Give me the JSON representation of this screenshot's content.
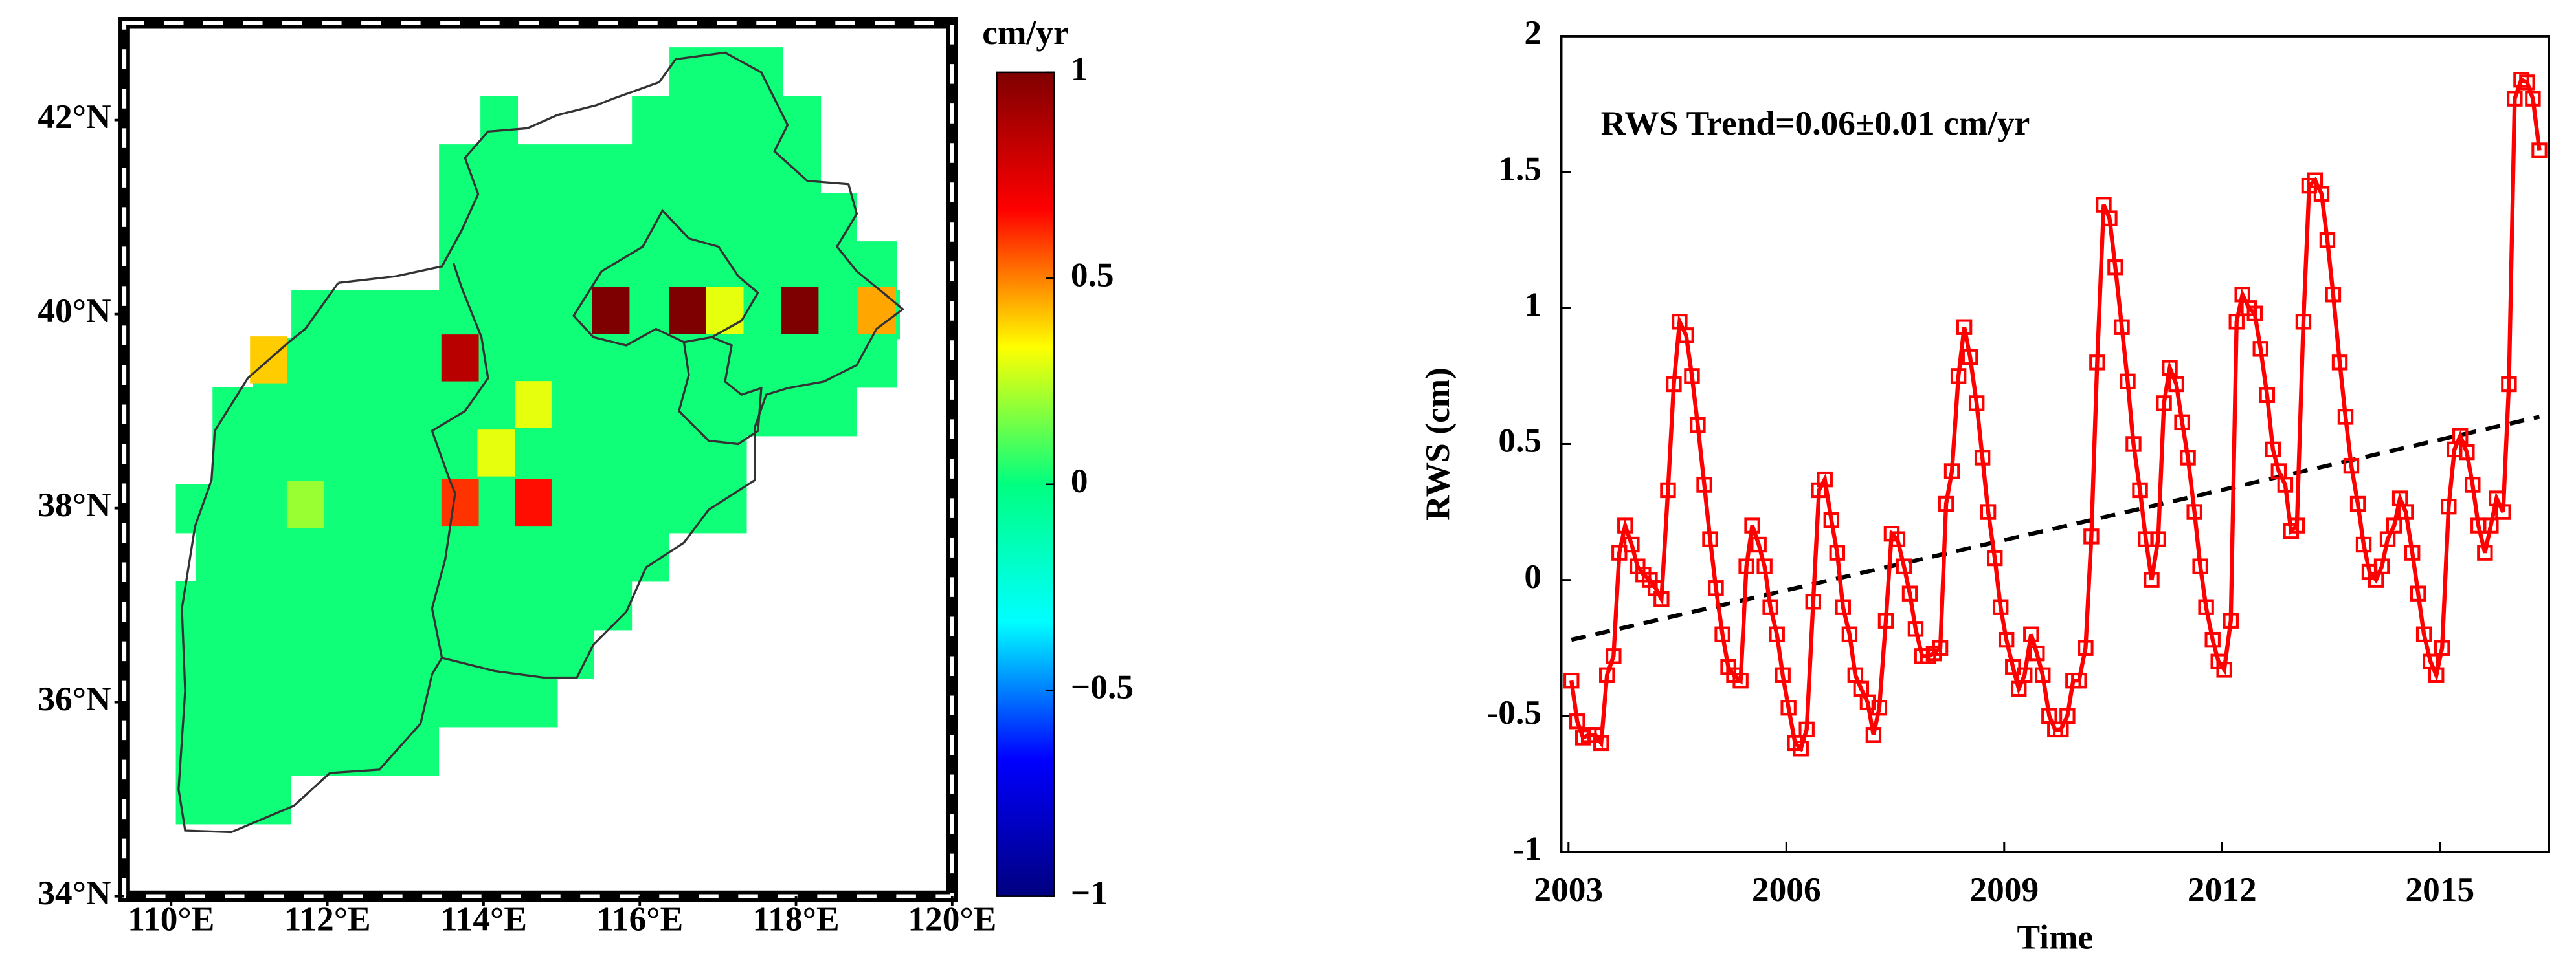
{
  "chart_data": [
    {
      "type": "heatmap",
      "colorbar_label": "cm/yr",
      "xlim": [
        109.4,
        120
      ],
      "ylim": [
        34,
        43
      ],
      "xticks": [
        {
          "value": 110,
          "label": "110°E"
        },
        {
          "value": 112,
          "label": "112°E"
        },
        {
          "value": 114,
          "label": "114°E"
        },
        {
          "value": 116,
          "label": "116°E"
        },
        {
          "value": 118,
          "label": "118°E"
        },
        {
          "value": 120,
          "label": "120°E"
        }
      ],
      "yticks": [
        {
          "value": 34,
          "label": "34°N"
        },
        {
          "value": 36,
          "label": "36°N"
        },
        {
          "value": 38,
          "label": "38°N"
        },
        {
          "value": 40,
          "label": "40°N"
        },
        {
          "value": 42,
          "label": "42°N"
        }
      ],
      "clim": [
        -1,
        1
      ],
      "cticks": [
        {
          "value": -1,
          "label": "−1"
        },
        {
          "value": -0.5,
          "label": "−0.5"
        },
        0,
        0.5,
        1
      ],
      "colormap": [
        "#00007f",
        "#0000ff",
        "#00ffff",
        "#00ff80",
        "#ffff00",
        "#ff0000",
        "#7f0000"
      ],
      "region_value": 0.02,
      "region_rows": [
        {
          "lat": 42.5,
          "lon": [
            116.38,
            117.83
          ]
        },
        {
          "lat": 42.0,
          "lon": [
            113.96,
            114.44
          ]
        },
        {
          "lat": 42.0,
          "lon": [
            115.9,
            118.32
          ]
        },
        {
          "lat": 41.5,
          "lon": [
            113.43,
            118.32
          ]
        },
        {
          "lat": 41.0,
          "lon": [
            113.43,
            118.78
          ]
        },
        {
          "lat": 40.5,
          "lon": [
            113.43,
            119.29
          ]
        },
        {
          "lat": 40.0,
          "lon": [
            111.54,
            119.33
          ]
        },
        {
          "lat": 39.5,
          "lon": [
            111.05,
            119.29
          ]
        },
        {
          "lat": 39.0,
          "lon": [
            110.53,
            118.78
          ]
        },
        {
          "lat": 38.5,
          "lon": [
            110.53,
            117.37
          ]
        },
        {
          "lat": 38.0,
          "lon": [
            110.06,
            117.37
          ]
        },
        {
          "lat": 37.5,
          "lon": [
            110.32,
            116.38
          ]
        },
        {
          "lat": 37.0,
          "lon": [
            110.06,
            115.9
          ]
        },
        {
          "lat": 36.5,
          "lon": [
            110.06,
            115.41
          ]
        },
        {
          "lat": 36.0,
          "lon": [
            110.06,
            114.95
          ]
        },
        {
          "lat": 35.5,
          "lon": [
            110.06,
            113.43
          ]
        },
        {
          "lat": 35.0,
          "lon": [
            110.06,
            111.54
          ]
        }
      ],
      "cells": [
        {
          "lon": 111.26,
          "lat": 39.52,
          "value": 0.4
        },
        {
          "lon": 113.71,
          "lat": 39.54,
          "value": 0.85
        },
        {
          "lon": 111.73,
          "lat": 38.03,
          "value": 0.2
        },
        {
          "lon": 114.65,
          "lat": 39.06,
          "value": 0.3
        },
        {
          "lon": 114.17,
          "lat": 38.56,
          "value": 0.3
        },
        {
          "lon": 113.71,
          "lat": 38.05,
          "value": 0.6
        },
        {
          "lon": 114.65,
          "lat": 38.05,
          "value": 0.65
        },
        {
          "lon": 115.64,
          "lat": 40.03,
          "value": 1.0
        },
        {
          "lon": 116.63,
          "lat": 40.03,
          "value": 1.0
        },
        {
          "lon": 117.1,
          "lat": 40.03,
          "value": 0.3
        },
        {
          "lon": 118.06,
          "lat": 40.03,
          "value": 1.0
        },
        {
          "lon": 119.05,
          "lat": 40.03,
          "value": 0.45
        }
      ]
    },
    {
      "type": "line",
      "xlabel": "Time",
      "ylabel": "RWS (cm)",
      "annotation": "RWS Trend=0.06±0.01 cm/yr",
      "xlim": [
        2002.9,
        2016.5
      ],
      "ylim": [
        -1,
        2
      ],
      "xticks": [
        2003,
        2006,
        2009,
        2012,
        2015
      ],
      "yticks": [
        -1,
        -0.5,
        0,
        0.5,
        1,
        1.5,
        2
      ],
      "x": [
        2003.04,
        2003.12,
        2003.2,
        2003.28,
        2003.37,
        2003.45,
        2003.53,
        2003.62,
        2003.7,
        2003.78,
        2003.87,
        2003.95,
        2004.03,
        2004.12,
        2004.2,
        2004.28,
        2004.37,
        2004.45,
        2004.53,
        2004.62,
        2004.7,
        2004.78,
        2004.87,
        2004.95,
        2005.03,
        2005.12,
        2005.2,
        2005.28,
        2005.37,
        2005.45,
        2005.53,
        2005.62,
        2005.7,
        2005.78,
        2005.87,
        2005.95,
        2006.03,
        2006.12,
        2006.2,
        2006.28,
        2006.37,
        2006.45,
        2006.53,
        2006.62,
        2006.7,
        2006.78,
        2006.87,
        2006.95,
        2007.03,
        2007.12,
        2007.2,
        2007.28,
        2007.37,
        2007.45,
        2007.53,
        2007.62,
        2007.7,
        2007.78,
        2007.87,
        2007.95,
        2008.03,
        2008.12,
        2008.2,
        2008.28,
        2008.37,
        2008.45,
        2008.53,
        2008.62,
        2008.7,
        2008.78,
        2008.87,
        2008.95,
        2009.03,
        2009.12,
        2009.2,
        2009.28,
        2009.37,
        2009.45,
        2009.53,
        2009.62,
        2009.7,
        2009.78,
        2009.87,
        2009.95,
        2010.03,
        2010.12,
        2010.2,
        2010.28,
        2010.37,
        2010.45,
        2010.53,
        2010.62,
        2010.7,
        2010.78,
        2010.87,
        2010.95,
        2011.03,
        2011.12,
        2011.2,
        2011.28,
        2011.37,
        2011.45,
        2011.53,
        2011.62,
        2011.7,
        2011.78,
        2011.87,
        2011.95,
        2012.03,
        2012.12,
        2012.2,
        2012.28,
        2012.37,
        2012.45,
        2012.53,
        2012.62,
        2012.7,
        2012.78,
        2012.87,
        2012.95,
        2013.03,
        2013.12,
        2013.2,
        2013.28,
        2013.37,
        2013.45,
        2013.53,
        2013.62,
        2013.7,
        2013.78,
        2013.87,
        2013.95,
        2014.03,
        2014.12,
        2014.2,
        2014.28,
        2014.37,
        2014.45,
        2014.53,
        2014.62,
        2014.7,
        2014.78,
        2014.87,
        2014.95,
        2015.03,
        2015.12,
        2015.2,
        2015.28,
        2015.37,
        2015.45,
        2015.53,
        2015.62,
        2015.7,
        2015.78,
        2015.87,
        2015.95,
        2016.03,
        2016.12,
        2016.2,
        2016.28,
        2016.37
      ],
      "series": [
        {
          "color": "#ff0000",
          "values": [
            -0.37,
            -0.52,
            -0.58,
            -0.57,
            -0.57,
            -0.6,
            -0.35,
            -0.28,
            0.1,
            0.2,
            0.13,
            0.05,
            0.02,
            0.0,
            -0.03,
            -0.07,
            0.33,
            0.72,
            0.95,
            0.9,
            0.75,
            0.57,
            0.35,
            0.15,
            -0.03,
            -0.2,
            -0.32,
            -0.35,
            -0.37,
            0.05,
            0.2,
            0.13,
            0.05,
            -0.1,
            -0.2,
            -0.35,
            -0.47,
            -0.6,
            -0.62,
            -0.55,
            -0.08,
            0.33,
            0.37,
            0.22,
            0.1,
            -0.1,
            -0.2,
            -0.35,
            -0.4,
            -0.45,
            -0.57,
            -0.47,
            -0.15,
            0.17,
            0.15,
            0.05,
            -0.05,
            -0.18,
            -0.28,
            -0.28,
            -0.27,
            -0.25,
            0.28,
            0.4,
            0.75,
            0.93,
            0.82,
            0.65,
            0.45,
            0.25,
            0.08,
            -0.1,
            -0.22,
            -0.32,
            -0.4,
            -0.35,
            -0.2,
            -0.27,
            -0.35,
            -0.5,
            -0.55,
            -0.55,
            -0.5,
            -0.37,
            -0.37,
            -0.25,
            0.16,
            0.8,
            1.38,
            1.33,
            1.15,
            0.93,
            0.73,
            0.5,
            0.33,
            0.15,
            0.0,
            0.15,
            0.65,
            0.78,
            0.72,
            0.58,
            0.45,
            0.25,
            0.05,
            -0.1,
            -0.22,
            -0.3,
            -0.33,
            -0.15,
            0.95,
            1.05,
            1.0,
            0.98,
            0.85,
            0.68,
            0.48,
            0.4,
            0.35,
            0.18,
            0.2,
            0.95,
            1.45,
            1.47,
            1.42,
            1.25,
            1.05,
            0.8,
            0.6,
            0.42,
            0.28,
            0.13,
            0.03,
            0.0,
            0.05,
            0.15,
            0.2,
            0.3,
            0.25,
            0.1,
            -0.05,
            -0.2,
            -0.3,
            -0.35,
            -0.25,
            0.27,
            0.48,
            0.53,
            0.47,
            0.35,
            0.2,
            0.1,
            0.2,
            0.3,
            0.25,
            0.72,
            1.77,
            1.84,
            1.83,
            1.77,
            1.58
          ]
        }
      ],
      "trend_line": {
        "x": [
          2003.04,
          2016.37
        ],
        "values": [
          -0.22,
          0.6
        ],
        "color": "#000000"
      }
    }
  ]
}
